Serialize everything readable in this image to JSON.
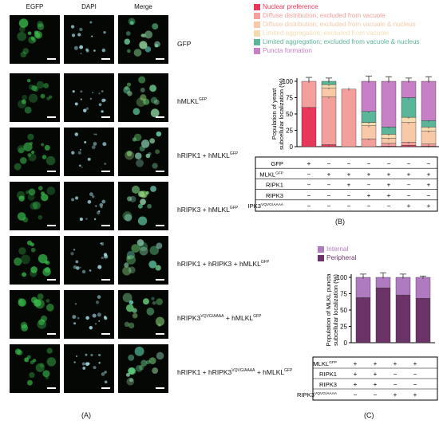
{
  "panel_a": {
    "columns": [
      "EGFP",
      "DAPI",
      "Merge"
    ],
    "rows": [
      {
        "label": "GFP",
        "sup": ""
      },
      {
        "label": "hMLKL",
        "sup": "GFP"
      },
      {
        "label": "hRIPK1 + hMLKL",
        "sup": "GFP"
      },
      {
        "label": "hRIPK3 + hMLKL",
        "sup": "GFP"
      },
      {
        "label": "hRIPK1 + hRIPK3 + hMLKL",
        "sup": "GFP"
      },
      {
        "label": "hRIPK3",
        "sup": "VQVG/AAAA",
        "label2": " + hMLKL",
        "sup2": "GFP"
      },
      {
        "label": "hRIPK1 + hRIPK3",
        "sup": "VQVG/AAAA",
        "label2": " + hMLKL",
        "sup2": "GFP"
      }
    ],
    "letter": "(A)"
  },
  "panel_b": {
    "letter": "(B)",
    "legend": [
      {
        "label": "Nuclear preference",
        "color": "#e8385a"
      },
      {
        "label": "Diffuse distribution; excluded from vacuole",
        "color": "#f3a09c"
      },
      {
        "label": "Diffuse distribution; excluded from vacuole & nucleus",
        "color": "#f8c9a6"
      },
      {
        "label": "Limited aggregation; excluded from vacuole",
        "color": "#f5dcb0"
      },
      {
        "label": "Limited aggregation; excluded from vacuole & nucleus",
        "color": "#5bb598"
      },
      {
        "label": "Puncta formation",
        "color": "#c77fc6"
      }
    ],
    "table_rows": [
      {
        "label": "GFP",
        "sup": "",
        "values": [
          "+",
          "−",
          "−",
          "−",
          "−",
          "−",
          "−"
        ]
      },
      {
        "label": "MLKL",
        "sup": "GFP",
        "values": [
          "−",
          "+",
          "+",
          "+",
          "+",
          "+",
          "+"
        ]
      },
      {
        "label": "RIPK1",
        "sup": "",
        "values": [
          "−",
          "−",
          "+",
          "−",
          "+",
          "−",
          "+"
        ]
      },
      {
        "label": "RIPK3",
        "sup": "",
        "values": [
          "−",
          "−",
          "−",
          "+",
          "+",
          "−",
          "−"
        ]
      },
      {
        "label": "RIPK3",
        "sup": "VQVG/AAAA",
        "values": [
          "−",
          "−",
          "−",
          "−",
          "−",
          "+",
          "+"
        ]
      }
    ]
  },
  "panel_c": {
    "letter": "(C)",
    "legend": [
      {
        "label": "Internal",
        "color": "#b07ac0"
      },
      {
        "label": "Peripheral",
        "color": "#6b3368"
      }
    ],
    "table_rows": [
      {
        "label": "MLKL",
        "sup": "GFP",
        "values": [
          "+",
          "+",
          "+",
          "+"
        ]
      },
      {
        "label": "RIPK1",
        "sup": "",
        "values": [
          "+",
          "+",
          "−",
          "−"
        ]
      },
      {
        "label": "RIPK3",
        "sup": "",
        "values": [
          "+",
          "+",
          "−",
          "−"
        ]
      },
      {
        "label": "RIPK3",
        "sup": "VQVG/AAAA",
        "values": [
          "−",
          "−",
          "+",
          "+"
        ]
      }
    ]
  },
  "chart_data": [
    {
      "type": "bar",
      "stacked": true,
      "ylabel": "Population of yeast subcellular localization (%)",
      "ylim": [
        0,
        100
      ],
      "yticks": [
        "0",
        "25",
        "50",
        "75",
        "100"
      ],
      "categories": [
        "1",
        "2",
        "3",
        "4",
        "5",
        "6",
        "7"
      ],
      "series": [
        {
          "name": "Nuclear preference",
          "color": "#e8385a",
          "values": [
            60,
            3,
            0,
            0,
            1,
            2,
            1
          ]
        },
        {
          "name": "Diffuse distribution; excluded from vacuole",
          "color": "#f3a09c",
          "values": [
            40,
            73,
            88,
            12,
            4,
            5,
            3
          ]
        },
        {
          "name": "Diffuse distribution; excluded from vacuole & nucleus",
          "color": "#f8c9a6",
          "values": [
            0,
            14,
            0,
            20,
            8,
            30,
            20
          ]
        },
        {
          "name": "Limited aggregation; excluded from vacuole",
          "color": "#f5dcb0",
          "values": [
            0,
            5,
            0,
            5,
            6,
            8,
            6
          ]
        },
        {
          "name": "Limited aggregation; excluded from vacuole & nucleus",
          "color": "#5bb598",
          "values": [
            0,
            5,
            0,
            17,
            11,
            30,
            10
          ]
        },
        {
          "name": "Puncta formation",
          "color": "#c77fc6",
          "values": [
            0,
            0,
            0,
            46,
            70,
            25,
            60
          ]
        }
      ],
      "error_tops": [
        6,
        5,
        0,
        8,
        7,
        5,
        7
      ]
    },
    {
      "type": "bar",
      "stacked": true,
      "ylabel": "Population of MLKL puncta subcellular localization (%)",
      "ylim": [
        0,
        100
      ],
      "yticks": [
        "0",
        "25",
        "50",
        "75",
        "100"
      ],
      "categories": [
        "1",
        "2",
        "3",
        "4"
      ],
      "series": [
        {
          "name": "Peripheral",
          "color": "#6b3368",
          "values": [
            69,
            84,
            73,
            68
          ]
        },
        {
          "name": "Internal",
          "color": "#b07ac0",
          "values": [
            31,
            16,
            27,
            32
          ]
        }
      ],
      "error_tops": [
        5,
        7,
        5,
        2
      ]
    }
  ]
}
